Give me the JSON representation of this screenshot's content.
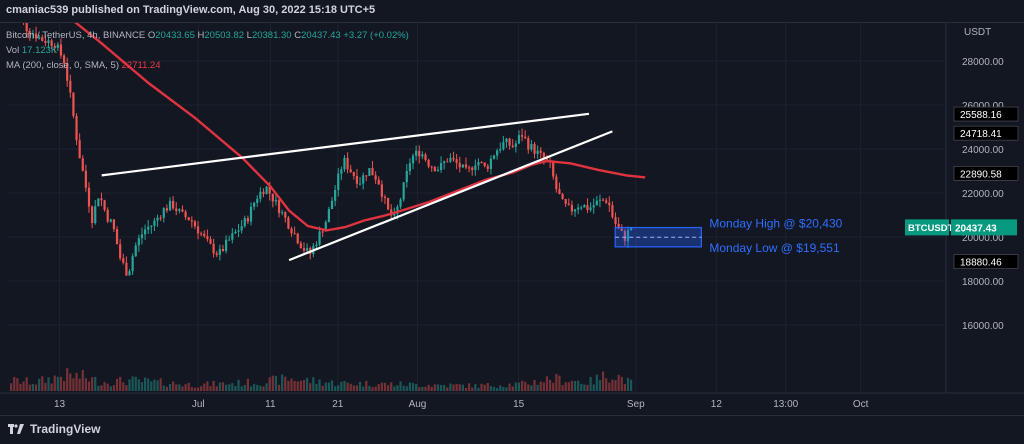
{
  "header": {
    "published": "cmaniac539 published on TradingView.com, Aug 30, 2022 15:18 UTC+5"
  },
  "legend": {
    "symbol": "Bitcoin / TetherUS, 4h, BINANCE",
    "o_label": "O",
    "o_value": "20433.65",
    "h_label": "H",
    "h_value": "20503.82",
    "l_label": "L",
    "l_value": "20381.30",
    "c_label": "C",
    "c_value": "20437.43",
    "change": "+3.27 (+0.02%)",
    "vol_label": "Vol",
    "vol_value": "17.123K",
    "ma_label": "MA (200, close, 0, SMA, 5)",
    "ma_value": "22711.24"
  },
  "footer": {
    "brand": "TradingView"
  },
  "colors": {
    "background": "#131722",
    "up": "#26a69a",
    "down": "#ef5350",
    "ma": "#e03340",
    "trendline": "#ffffff",
    "zone": "#2962ff",
    "zone_text": "#2f6fff"
  },
  "chart_data": {
    "type": "candlestick",
    "currency_label": "USDT",
    "y_ticks": [
      "28000.00",
      "26000.00",
      "24000.00",
      "22000.00",
      "20000.00",
      "18000.00",
      "16000.00"
    ],
    "y_tick_values": [
      28000,
      26000,
      24000,
      22000,
      20000,
      18000,
      16000
    ],
    "price_labels": [
      {
        "text": "25588.16",
        "value": 25588.16
      },
      {
        "text": "24718.41",
        "value": 24718.41
      },
      {
        "text": "22890.58",
        "value": 22890.58
      },
      {
        "text": "18880.46",
        "value": 18880.46
      }
    ],
    "current_price": {
      "symbol": "BTCUSDT",
      "text": "20437.43",
      "value": 20437.43
    },
    "x_ticks": [
      {
        "label": "13",
        "t": 0.055
      },
      {
        "label": "Jul",
        "t": 0.203
      },
      {
        "label": "11",
        "t": 0.28
      },
      {
        "label": "21",
        "t": 0.352
      },
      {
        "label": "Aug",
        "t": 0.437
      },
      {
        "label": "15",
        "t": 0.545
      },
      {
        "label": "Sep",
        "t": 0.67
      },
      {
        "label": "12",
        "t": 0.756
      },
      {
        "label": "13:00",
        "t": 0.83
      },
      {
        "label": "Oct",
        "t": 0.91
      }
    ],
    "price_path": [
      [
        0.0,
        30800
      ],
      [
        0.01,
        30200
      ],
      [
        0.02,
        29500
      ],
      [
        0.035,
        29000
      ],
      [
        0.05,
        28800
      ],
      [
        0.06,
        28000
      ],
      [
        0.068,
        26000
      ],
      [
        0.075,
        24000
      ],
      [
        0.082,
        22500
      ],
      [
        0.09,
        20800
      ],
      [
        0.097,
        22000
      ],
      [
        0.105,
        21000
      ],
      [
        0.112,
        20500
      ],
      [
        0.12,
        19000
      ],
      [
        0.128,
        18300
      ],
      [
        0.135,
        19500
      ],
      [
        0.145,
        20300
      ],
      [
        0.155,
        20600
      ],
      [
        0.165,
        21200
      ],
      [
        0.175,
        21500
      ],
      [
        0.185,
        21000
      ],
      [
        0.195,
        20800
      ],
      [
        0.205,
        20200
      ],
      [
        0.215,
        19600
      ],
      [
        0.225,
        19200
      ],
      [
        0.235,
        19800
      ],
      [
        0.245,
        20300
      ],
      [
        0.255,
        20800
      ],
      [
        0.265,
        21800
      ],
      [
        0.275,
        22300
      ],
      [
        0.285,
        21600
      ],
      [
        0.295,
        20900
      ],
      [
        0.305,
        20200
      ],
      [
        0.315,
        19500
      ],
      [
        0.322,
        19200
      ],
      [
        0.33,
        19900
      ],
      [
        0.34,
        20800
      ],
      [
        0.35,
        22300
      ],
      [
        0.358,
        23500
      ],
      [
        0.366,
        23000
      ],
      [
        0.375,
        22500
      ],
      [
        0.385,
        23100
      ],
      [
        0.395,
        22600
      ],
      [
        0.405,
        21200
      ],
      [
        0.412,
        20800
      ],
      [
        0.42,
        21900
      ],
      [
        0.43,
        23600
      ],
      [
        0.44,
        23900
      ],
      [
        0.45,
        23300
      ],
      [
        0.46,
        23100
      ],
      [
        0.47,
        23600
      ],
      [
        0.48,
        23300
      ],
      [
        0.49,
        22900
      ],
      [
        0.5,
        23500
      ],
      [
        0.51,
        23100
      ],
      [
        0.52,
        23900
      ],
      [
        0.53,
        24300
      ],
      [
        0.54,
        24100
      ],
      [
        0.548,
        24700
      ],
      [
        0.555,
        24200
      ],
      [
        0.563,
        23900
      ],
      [
        0.57,
        23600
      ],
      [
        0.578,
        23300
      ],
      [
        0.585,
        22200
      ],
      [
        0.592,
        21500
      ],
      [
        0.6,
        21200
      ],
      [
        0.61,
        21500
      ],
      [
        0.62,
        21300
      ],
      [
        0.63,
        21600
      ],
      [
        0.64,
        21700
      ],
      [
        0.646,
        20800
      ],
      [
        0.652,
        20300
      ],
      [
        0.658,
        19950
      ],
      [
        0.665,
        20437
      ]
    ],
    "volume_path": [
      [
        0.0,
        0.6
      ],
      [
        0.03,
        0.5
      ],
      [
        0.06,
        0.9
      ],
      [
        0.08,
        0.8
      ],
      [
        0.1,
        0.5
      ],
      [
        0.13,
        0.6
      ],
      [
        0.2,
        0.35
      ],
      [
        0.27,
        0.5
      ],
      [
        0.3,
        0.7
      ],
      [
        0.35,
        0.45
      ],
      [
        0.4,
        0.4
      ],
      [
        0.45,
        0.35
      ],
      [
        0.5,
        0.3
      ],
      [
        0.55,
        0.4
      ],
      [
        0.58,
        0.7
      ],
      [
        0.62,
        0.5
      ],
      [
        0.645,
        1.0
      ],
      [
        0.665,
        0.45
      ]
    ],
    "ma_series": [
      [
        0.0,
        31800
      ],
      [
        0.05,
        30500
      ],
      [
        0.1,
        28800
      ],
      [
        0.15,
        27000
      ],
      [
        0.2,
        25400
      ],
      [
        0.25,
        23600
      ],
      [
        0.28,
        22300
      ],
      [
        0.3,
        21200
      ],
      [
        0.32,
        20500
      ],
      [
        0.34,
        20300
      ],
      [
        0.36,
        20450
      ],
      [
        0.38,
        20750
      ],
      [
        0.4,
        20950
      ],
      [
        0.42,
        21200
      ],
      [
        0.45,
        21600
      ],
      [
        0.48,
        22100
      ],
      [
        0.51,
        22600
      ],
      [
        0.54,
        22950
      ],
      [
        0.56,
        23300
      ],
      [
        0.575,
        23450
      ],
      [
        0.6,
        23350
      ],
      [
        0.63,
        23050
      ],
      [
        0.66,
        22800
      ],
      [
        0.68,
        22711
      ]
    ],
    "trendlines": [
      {
        "name": "upper-resistance",
        "from": [
          0.1,
          22800
        ],
        "to": [
          0.62,
          25600
        ]
      },
      {
        "name": "lower-support",
        "from": [
          0.3,
          18950
        ],
        "to": [
          0.645,
          24800
        ]
      }
    ],
    "zone": {
      "high": 20430,
      "low": 19551,
      "from": 0.648,
      "to": 0.74
    },
    "annotations": [
      {
        "text": "Monday High @ $20,430",
        "value": 20430
      },
      {
        "text": "Monday Low @ $19,551",
        "value": 19551
      }
    ]
  }
}
